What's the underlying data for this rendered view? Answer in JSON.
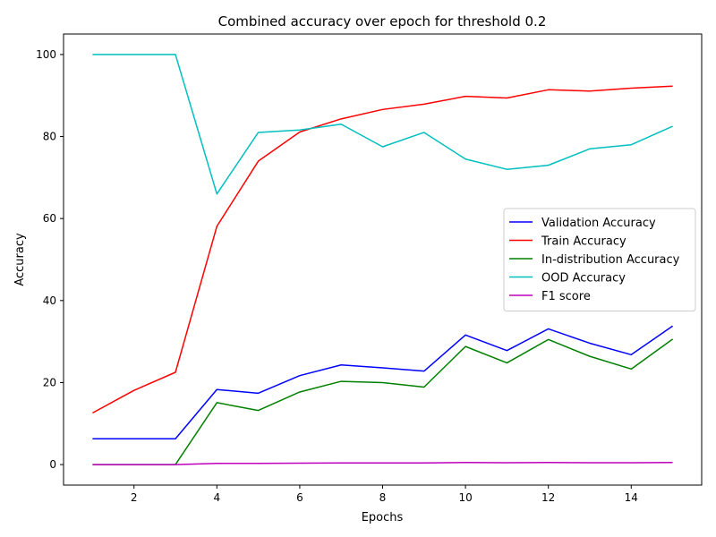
{
  "chart_data": {
    "type": "line",
    "title": "Combined accuracy over epoch for threshold 0.2",
    "xlabel": "Epochs",
    "ylabel": "Accuracy",
    "xlim": [
      0.3,
      15.7
    ],
    "ylim": [
      -5,
      105
    ],
    "xticks": [
      2,
      4,
      6,
      8,
      10,
      12,
      14
    ],
    "yticks": [
      0,
      20,
      40,
      60,
      80,
      100
    ],
    "grid": false,
    "legend_position": "center-right",
    "x": [
      1,
      2,
      3,
      4,
      5,
      6,
      7,
      8,
      9,
      10,
      11,
      12,
      13,
      14,
      15
    ],
    "series": [
      {
        "name": "Validation Accuracy",
        "color": "#0000ff",
        "values": [
          6.3,
          6.3,
          6.3,
          18.3,
          17.4,
          21.7,
          24.3,
          23.6,
          22.8,
          31.6,
          27.8,
          33.1,
          29.6,
          26.8,
          33.8
        ]
      },
      {
        "name": "Train Accuracy",
        "color": "#ff0000",
        "values": [
          12.6,
          18.1,
          22.5,
          58.1,
          74.0,
          81.1,
          84.3,
          86.6,
          87.9,
          89.8,
          89.4,
          91.4,
          91.1,
          91.8,
          92.3
        ]
      },
      {
        "name": "In-distribution Accuracy",
        "color": "#008000",
        "values": [
          0.0,
          0.0,
          0.0,
          15.1,
          13.2,
          17.7,
          20.3,
          20.0,
          18.9,
          28.8,
          24.8,
          30.5,
          26.4,
          23.3,
          30.6
        ]
      },
      {
        "name": "OOD Accuracy",
        "color": "#00bfbf",
        "values": [
          100.0,
          100.0,
          100.0,
          66.0,
          81.0,
          81.6,
          83.0,
          77.5,
          81.0,
          74.5,
          72.0,
          73.0,
          77.0,
          78.0,
          82.5
        ]
      },
      {
        "name": "F1 score",
        "color": "#bf00bf",
        "values": [
          0.0,
          0.0,
          0.0,
          0.3,
          0.3,
          0.35,
          0.4,
          0.4,
          0.4,
          0.5,
          0.45,
          0.5,
          0.45,
          0.45,
          0.5
        ]
      }
    ]
  }
}
